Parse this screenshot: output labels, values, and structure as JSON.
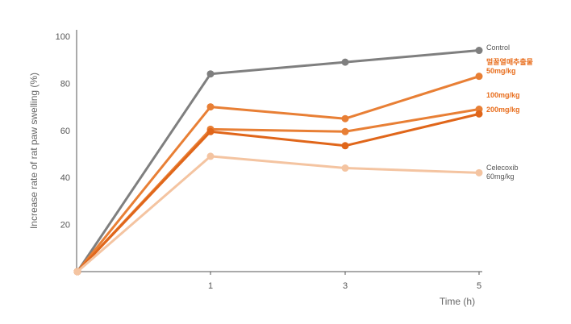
{
  "chart_data": {
    "type": "line",
    "x": [
      0,
      1,
      3,
      5
    ],
    "xticks": [
      "1",
      "3",
      "5"
    ],
    "yticks": [
      "20",
      "40",
      "60",
      "80",
      "100"
    ],
    "xlabel": "Time (h)",
    "ylabel": "Increase rate  of rat paw swelling (%)",
    "ylim": [
      0,
      100
    ],
    "grid": false,
    "series": [
      {
        "name": "Control",
        "color": "#7f7f7f",
        "values": [
          0,
          84,
          89,
          94
        ]
      },
      {
        "name": "멀꿀열매추출물 50mg/kg",
        "color": "#e87f35",
        "values": [
          0,
          70,
          65,
          83
        ]
      },
      {
        "name": "100mg/kg",
        "color": "#e87f35",
        "values": [
          0,
          60.5,
          59.5,
          69
        ]
      },
      {
        "name": "200mg/kg",
        "color": "#e0661a",
        "values": [
          0,
          59.5,
          53.5,
          67
        ]
      },
      {
        "name": "Celecoxib 60mg/kg",
        "color": "#f4c4a1",
        "values": [
          0,
          49,
          44,
          42
        ]
      }
    ],
    "series_labels": [
      {
        "lines": [
          "Control"
        ],
        "style": "dark"
      },
      {
        "lines": [
          "멀꿀열매추출물",
          "50mg/kg"
        ],
        "style": "orange"
      },
      {
        "lines": [
          "100mg/kg"
        ],
        "style": "orange"
      },
      {
        "lines": [
          "200mg/kg"
        ],
        "style": "orange"
      },
      {
        "lines": [
          "Celecoxib",
          "60mg/kg"
        ],
        "style": "dark"
      }
    ]
  }
}
